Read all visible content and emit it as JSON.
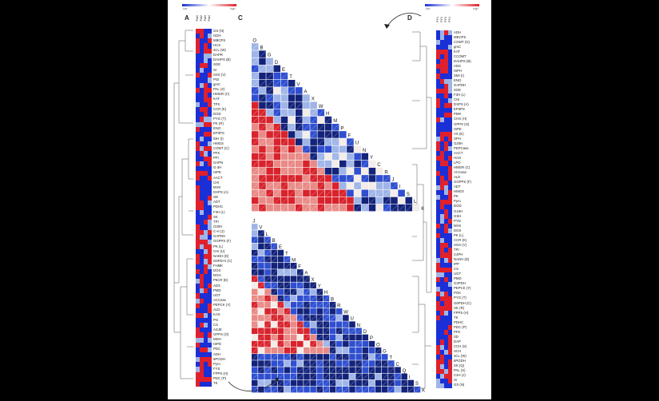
{
  "panels": {
    "a": "A",
    "b": "B",
    "c": "C",
    "d": "D"
  },
  "legend": {
    "min": "-low",
    "max": "high"
  },
  "columns_left": [
    "Pat1",
    "Pat2",
    "Pat3",
    "Pat4"
  ],
  "columns_right": [
    "PY1",
    "PY2",
    "PY3",
    "PY4"
  ],
  "colors": {
    "blue": "#1a2fd6",
    "red": "#e0202c",
    "dark_navy": "#13237a",
    "light_blue": "#9fb5e8",
    "pale": "#f4ece8"
  },
  "genes_left": [
    "GS (N)",
    "GDH",
    "MBCPS",
    "HCS",
    "4CL (W)",
    "DAPR",
    "DAHPS (B)",
    "SGE",
    "SI",
    "SSS (V)",
    "PGI",
    "gmC",
    "PAL (X)",
    "HMGR (C)",
    "KAT",
    "TPS",
    "CCR (K)",
    "DOD",
    "PYG (T)",
    "PK (R)",
    "ENO",
    "EP3PS",
    "IDH (I)",
    "HMGS",
    "COMT (C)",
    "PFK",
    "PPi",
    "GAPN",
    "G-3H",
    "ISPE",
    "AACT",
    "CHI",
    "MVK",
    "DXPS (A)",
    "SD",
    "ADT",
    "PDHC",
    "F3H (L)",
    "SK",
    "TPI",
    "G20H",
    "C-H (J)",
    "GAPDH",
    "GGPPS (F)",
    "PK (L)",
    "CHI (U)",
    "NADH (D)",
    "G6PD-H (C)",
    "FHMK",
    "DGS",
    "DGH",
    "P5CR (E)",
    "ADS",
    "PMD",
    "UGT",
    "ACCase",
    "PEPCK (Y)",
    "ALD",
    "KAS",
    "PG",
    "CS",
    "ASJE",
    "GPPS (O)",
    "MDH",
    "ISPD",
    "PDC",
    "ADH",
    "6PGDH",
    "Pyro",
    "FYS",
    "FPPS (H)",
    "PDC (P)",
    "TK"
  ],
  "genes_right": [
    "ADH",
    "MECPS",
    "COMT (G)",
    "gmC",
    "KAT",
    "CCOMT",
    "DAHPS (B)",
    "ADS",
    "ISPH",
    "SMI (I)",
    "ENO",
    "GAPDH",
    "SGE",
    "F3H (L)",
    "CHI",
    "DXPS (A)",
    "EP3PS",
    "PMK",
    "CHS (H)",
    "GPPS (O)",
    "ISPE",
    "AS (E)",
    "SPH",
    "G20H",
    "PEPCase",
    "AACT",
    "HAG",
    "LPO",
    "HMGR (C)",
    "ACCase",
    "ALD",
    "GGPPS (F)",
    "ADT",
    "HMGS",
    "PK",
    "Pyro",
    "DOD",
    "G10H",
    "GSH",
    "PYD",
    "MVK",
    "DGS",
    "PK (L)",
    "CCR (K)",
    "SGS (V)",
    "TPI",
    "C4PH",
    "NADH (D)",
    "IPP",
    "CS",
    "UGT",
    "PMD",
    "G3PDH",
    "PEPCK (Y)",
    "PGK",
    "PYG (T)",
    "G6PDH (C)",
    "HK (R)",
    "FPPS (H)",
    "TK",
    "PDHC",
    "PDC (P)",
    "PFK",
    "SD",
    "DAP",
    "CCH (S)",
    "SCH",
    "4CL (W)",
    "6PGDH",
    "SK (Q)",
    "PAL (X)",
    "C4H (J)",
    "IS",
    "GS (N)"
  ],
  "triangle_top_labels": [
    "O",
    "B",
    "G",
    "D",
    "E",
    "T",
    "V",
    "A",
    "X",
    "W",
    "H",
    "M",
    "P",
    "F",
    "U",
    "N",
    "Y",
    "C",
    "R",
    "J",
    "I",
    "S",
    "L",
    "K"
  ],
  "triangle_bottom_labels": [
    "J",
    "V",
    "L",
    "B",
    "E",
    "T",
    "M",
    "F",
    "A",
    "X",
    "Y",
    "H",
    "B",
    "R",
    "W",
    "U",
    "N",
    "D",
    "P",
    "O",
    "G",
    "T",
    "C",
    "Q",
    "I",
    "S",
    "K"
  ]
}
